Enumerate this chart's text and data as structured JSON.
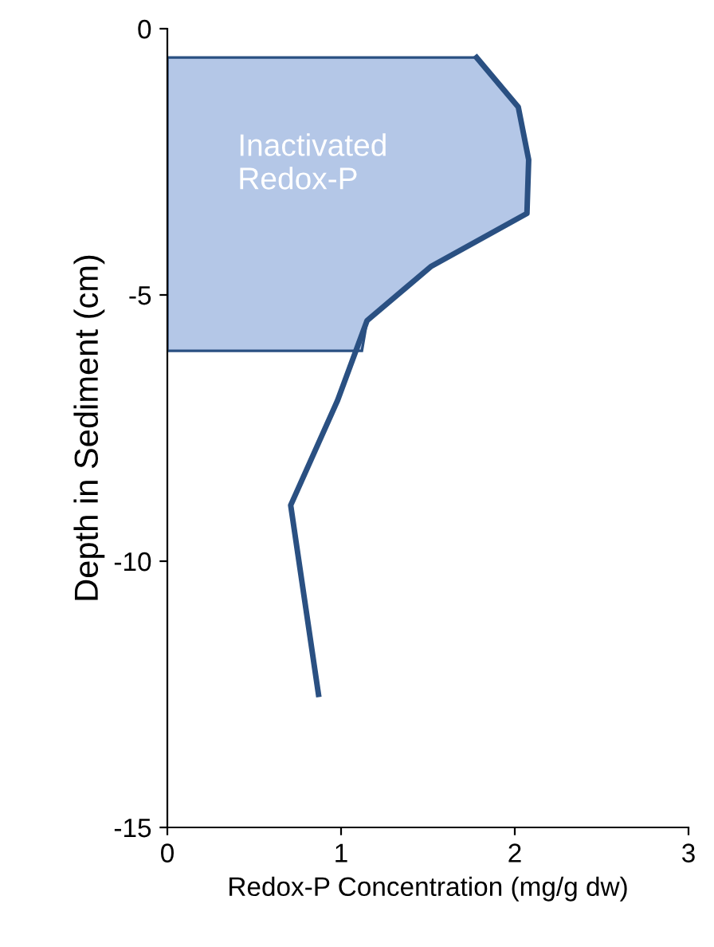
{
  "chart_data": {
    "type": "line",
    "xlabel": "Redox-P Concentration (mg/g dw)",
    "ylabel": "Depth in Sediment (cm)",
    "xlim": [
      0,
      3
    ],
    "xticks": [
      0,
      1,
      2,
      3
    ],
    "ylim": [
      -15,
      0
    ],
    "yticks": [
      -15,
      -10,
      -5,
      0
    ],
    "grid": false,
    "legend": false,
    "series": [
      {
        "type": "area",
        "color": "#b4c7e7",
        "x": [
          0,
          1.78,
          2.02,
          2.08,
          2.07,
          1.52,
          1.15,
          1.12,
          0
        ],
        "values": [
          -0.54,
          -0.54,
          -1.47,
          -2.46,
          -3.47,
          -4.46,
          -5.48,
          -6.05,
          -6.05
        ]
      },
      {
        "color": "#2a5082",
        "x": [
          1.78,
          2.02,
          2.08,
          2.07,
          1.52,
          1.15,
          0.98,
          0.71,
          0.87
        ],
        "values": [
          -0.54,
          -1.47,
          -2.46,
          -3.47,
          -4.46,
          -5.48,
          -6.98,
          -8.95,
          -12.5
        ]
      }
    ],
    "annotations": [
      "Inactivated\nRedox-P"
    ]
  }
}
